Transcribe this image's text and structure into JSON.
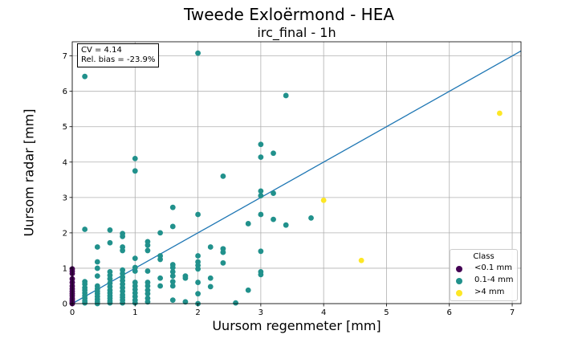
{
  "figure": {
    "suptitle": "Tweede Exloërmond - HEA",
    "stats": {
      "cv": "CV = 4.14",
      "bias": "Rel. bias = -23.9%"
    }
  },
  "chart_data": {
    "type": "scatter",
    "title": "irc_final - 1h",
    "xlabel": "Uursom regenmeter [mm]",
    "ylabel": "Uursom radar [mm]",
    "xlim": [
      0,
      7.14
    ],
    "ylim": [
      0,
      7.4
    ],
    "xticks": [
      0,
      1,
      2,
      3,
      4,
      5,
      6,
      7
    ],
    "yticks": [
      0,
      1,
      2,
      3,
      4,
      5,
      6,
      7
    ],
    "grid": true,
    "legend": {
      "title": "Class",
      "placement": "lower-right"
    },
    "reference_line": {
      "type": "1:1",
      "color": "#1f77b4"
    },
    "series": [
      {
        "name": "<0.1 mm",
        "color": "#440154",
        "points": [
          [
            0,
            0.98
          ],
          [
            0,
            0.92
          ],
          [
            0,
            0.85
          ],
          [
            0,
            0.7
          ],
          [
            0,
            0.6
          ],
          [
            0,
            0.5
          ],
          [
            0,
            0.42
          ],
          [
            0,
            0.35
          ],
          [
            0,
            0.28
          ],
          [
            0,
            0.22
          ],
          [
            0,
            0.15
          ],
          [
            0,
            0.1
          ],
          [
            0,
            0.05
          ],
          [
            0,
            0.02
          ],
          [
            0,
            0
          ]
        ]
      },
      {
        "name": "0.1-4 mm",
        "color": "#21918c",
        "points": [
          [
            0.2,
            6.42
          ],
          [
            0.2,
            2.1
          ],
          [
            0.2,
            0.62
          ],
          [
            0.2,
            0.55
          ],
          [
            0.2,
            0.45
          ],
          [
            0.2,
            0.38
          ],
          [
            0.2,
            0.3
          ],
          [
            0.2,
            0.22
          ],
          [
            0.2,
            0.15
          ],
          [
            0.2,
            0.08
          ],
          [
            0.2,
            0.02
          ],
          [
            0.4,
            1.6
          ],
          [
            0.4,
            1.18
          ],
          [
            0.4,
            1.0
          ],
          [
            0.4,
            0.78
          ],
          [
            0.4,
            0.5
          ],
          [
            0.4,
            0.42
          ],
          [
            0.4,
            0.35
          ],
          [
            0.4,
            0.28
          ],
          [
            0.4,
            0.2
          ],
          [
            0.4,
            0.12
          ],
          [
            0.4,
            0.05
          ],
          [
            0.4,
            0.0
          ],
          [
            0.6,
            2.08
          ],
          [
            0.6,
            1.72
          ],
          [
            0.6,
            0.9
          ],
          [
            0.6,
            0.8
          ],
          [
            0.6,
            0.7
          ],
          [
            0.6,
            0.58
          ],
          [
            0.6,
            0.48
          ],
          [
            0.6,
            0.38
          ],
          [
            0.6,
            0.3
          ],
          [
            0.6,
            0.22
          ],
          [
            0.6,
            0.15
          ],
          [
            0.6,
            0.08
          ],
          [
            0.6,
            0.02
          ],
          [
            0.8,
            1.98
          ],
          [
            0.8,
            1.9
          ],
          [
            0.8,
            1.6
          ],
          [
            0.8,
            1.5
          ],
          [
            0.8,
            0.95
          ],
          [
            0.8,
            0.85
          ],
          [
            0.8,
            0.75
          ],
          [
            0.8,
            0.65
          ],
          [
            0.8,
            0.55
          ],
          [
            0.8,
            0.45
          ],
          [
            0.8,
            0.35
          ],
          [
            0.8,
            0.25
          ],
          [
            0.8,
            0.18
          ],
          [
            0.8,
            0.1
          ],
          [
            0.8,
            0.02
          ],
          [
            1.0,
            4.1
          ],
          [
            1.0,
            3.75
          ],
          [
            1.0,
            1.28
          ],
          [
            1.0,
            1.02
          ],
          [
            1.0,
            0.92
          ],
          [
            1.0,
            0.6
          ],
          [
            1.0,
            0.5
          ],
          [
            1.0,
            0.4
          ],
          [
            1.0,
            0.3
          ],
          [
            1.0,
            0.2
          ],
          [
            1.0,
            0.1
          ],
          [
            1.0,
            0.02
          ],
          [
            1.2,
            1.75
          ],
          [
            1.2,
            1.65
          ],
          [
            1.2,
            1.5
          ],
          [
            1.2,
            0.92
          ],
          [
            1.2,
            0.6
          ],
          [
            1.2,
            0.5
          ],
          [
            1.2,
            0.38
          ],
          [
            1.2,
            0.28
          ],
          [
            1.2,
            0.15
          ],
          [
            1.2,
            0.05
          ],
          [
            1.4,
            2.0
          ],
          [
            1.4,
            1.35
          ],
          [
            1.4,
            1.25
          ],
          [
            1.4,
            0.72
          ],
          [
            1.4,
            0.5
          ],
          [
            1.6,
            2.72
          ],
          [
            1.6,
            2.18
          ],
          [
            1.6,
            1.1
          ],
          [
            1.6,
            1.02
          ],
          [
            1.6,
            0.9
          ],
          [
            1.6,
            0.78
          ],
          [
            1.6,
            0.62
          ],
          [
            1.6,
            0.5
          ],
          [
            1.6,
            0.1
          ],
          [
            1.8,
            0.78
          ],
          [
            1.8,
            0.72
          ],
          [
            1.8,
            0.05
          ],
          [
            2.0,
            7.08
          ],
          [
            2.0,
            2.52
          ],
          [
            2.0,
            1.35
          ],
          [
            2.0,
            1.18
          ],
          [
            2.0,
            1.08
          ],
          [
            2.0,
            0.98
          ],
          [
            2.0,
            0.6
          ],
          [
            2.0,
            0.28
          ],
          [
            2.0,
            0.0
          ],
          [
            2.2,
            1.6
          ],
          [
            2.2,
            0.72
          ],
          [
            2.2,
            0.48
          ],
          [
            2.4,
            3.6
          ],
          [
            2.4,
            1.55
          ],
          [
            2.4,
            1.45
          ],
          [
            2.4,
            1.15
          ],
          [
            2.6,
            0.02
          ],
          [
            2.8,
            2.26
          ],
          [
            2.8,
            0.38
          ],
          [
            3.0,
            4.5
          ],
          [
            3.0,
            4.14
          ],
          [
            3.0,
            3.18
          ],
          [
            3.0,
            3.05
          ],
          [
            3.0,
            2.52
          ],
          [
            3.0,
            1.48
          ],
          [
            3.0,
            0.9
          ],
          [
            3.0,
            0.82
          ],
          [
            3.2,
            4.25
          ],
          [
            3.2,
            3.12
          ],
          [
            3.2,
            2.38
          ],
          [
            3.4,
            5.88
          ],
          [
            3.4,
            2.22
          ],
          [
            3.8,
            2.42
          ]
        ]
      },
      {
        "name": ">4 mm",
        "color": "#fde725",
        "points": [
          [
            4.0,
            2.92
          ],
          [
            4.6,
            1.22
          ],
          [
            6.8,
            5.38
          ]
        ]
      }
    ]
  }
}
